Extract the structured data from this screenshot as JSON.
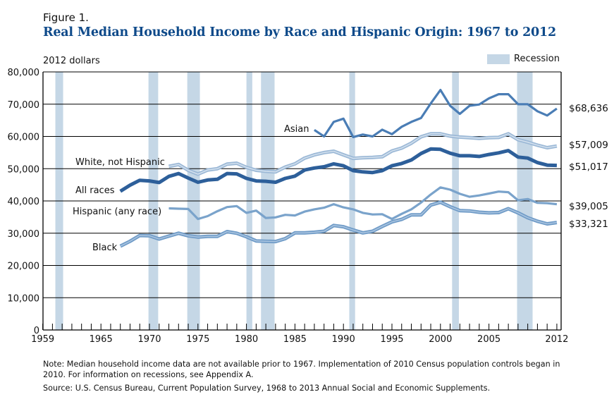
{
  "figure_label": "Figure 1.",
  "title": "Real Median Household Income by Race and Hispanic Origin: 1967 to 2012",
  "y_unit_label": "2012 dollars",
  "legend": {
    "recession_label": "Recession",
    "recession_color": "#c5d7e6"
  },
  "note": "Note: Median household income data are not available prior to 1967. Implementation of 2010 Census population controls began in 2010. For information on recessions, see Appendix A.",
  "source": "Source: U.S. Census Bureau, Current Population Survey, 1968 to 2013 Annual Social and Economic Supplements.",
  "chart_data": {
    "type": "line",
    "title": "Real Median Household Income by Race and Hispanic Origin: 1967 to 2012",
    "xlabel": "",
    "ylabel": "2012 dollars",
    "xlim": [
      1959,
      2012
    ],
    "ylim": [
      0,
      80000
    ],
    "grid": true,
    "y_ticks": [
      0,
      10000,
      20000,
      30000,
      40000,
      50000,
      60000,
      70000,
      80000
    ],
    "y_tick_labels": [
      "0",
      "10,000",
      "20,000",
      "30,000",
      "40,000",
      "50,000",
      "60,000",
      "70,000",
      "80,000"
    ],
    "x_ticks": [
      1959,
      1965,
      1970,
      1975,
      1980,
      1985,
      1990,
      1995,
      2000,
      2005,
      2012
    ],
    "x_tick_labels": [
      "1959",
      "1965",
      "1970",
      "1975",
      "1980",
      "1985",
      "1990",
      "1995",
      "2000",
      "2005",
      "2012"
    ],
    "legend_position": "top-right",
    "recessions": [
      [
        1960.3,
        1961.1
      ],
      [
        1969.9,
        1970.9
      ],
      [
        1973.9,
        1975.2
      ],
      [
        1980.0,
        1980.6
      ],
      [
        1981.5,
        1982.9
      ],
      [
        1990.6,
        1991.2
      ],
      [
        2001.2,
        2001.9
      ],
      [
        2007.9,
        2009.5
      ]
    ],
    "series": [
      {
        "name": "Asian",
        "label": "Asian",
        "end_label": "$68,636",
        "color": "#4a7db5",
        "style": "solid",
        "start_year": 1987,
        "values": [
          62000,
          60000,
          64500,
          65500,
          59800,
          60600,
          60000,
          62100,
          60700,
          63000,
          64500,
          65700,
          70200,
          74400,
          69500,
          67000,
          69500,
          69900,
          71800,
          73100,
          73100,
          70000,
          70000,
          67800,
          66500,
          68636
        ]
      },
      {
        "name": "White, not Hispanic",
        "label": "White, not Hispanic",
        "end_label": "$57,009",
        "color": "#9bb8d6",
        "style": "double",
        "start_year": 1972,
        "values": [
          50700,
          51300,
          49500,
          48300,
          49600,
          50000,
          51400,
          51700,
          50400,
          49500,
          49200,
          49000,
          50500,
          51500,
          53300,
          54300,
          55000,
          55400,
          54300,
          53200,
          53400,
          53500,
          53700,
          55500,
          56400,
          57900,
          59900,
          60800,
          60800,
          60100,
          59800,
          59600,
          59400,
          59600,
          59700,
          60800,
          59000,
          58200,
          57300,
          56500,
          57009
        ]
      },
      {
        "name": "All races",
        "label": "All races",
        "end_label": "$51,017",
        "color": "#2d5f9a",
        "style": "thick",
        "start_year": 1967,
        "values": [
          43000,
          44900,
          46400,
          46200,
          45700,
          47600,
          48500,
          47100,
          45800,
          46500,
          46700,
          48500,
          48400,
          47000,
          46200,
          46100,
          45800,
          47000,
          47700,
          49600,
          50200,
          50600,
          51500,
          50900,
          49400,
          49000,
          48800,
          49400,
          50900,
          51600,
          52700,
          54700,
          56100,
          56000,
          54800,
          54000,
          54000,
          53800,
          54400,
          54900,
          55600,
          53600,
          53300,
          51900,
          51100,
          51017
        ]
      },
      {
        "name": "Hispanic (any race)",
        "label": "Hispanic (any race)",
        "end_label": "$39,005",
        "color": "#7aa3cb",
        "style": "solid",
        "start_year": 1972,
        "values": [
          37700,
          37600,
          37500,
          34400,
          35300,
          36800,
          38100,
          38400,
          36300,
          37000,
          34700,
          34900,
          35700,
          35500,
          36700,
          37400,
          37900,
          39000,
          38000,
          37400,
          36300,
          35800,
          35900,
          34400,
          36000,
          37400,
          39500,
          42000,
          44200,
          43500,
          42200,
          41300,
          41700,
          42300,
          42900,
          42700,
          40200,
          40600,
          39400,
          39300,
          39005
        ]
      },
      {
        "name": "Black",
        "label": "Black",
        "end_label": "$33,321",
        "color": "#6f9bc7",
        "style": "double",
        "start_year": 1967,
        "values": [
          26000,
          27500,
          29300,
          29200,
          28200,
          29100,
          30000,
          29200,
          28800,
          29000,
          29000,
          30500,
          30000,
          28900,
          27600,
          27500,
          27400,
          28300,
          30100,
          30100,
          30300,
          30600,
          32400,
          32000,
          31000,
          30100,
          30600,
          32100,
          33500,
          34300,
          35700,
          35700,
          38700,
          39600,
          38200,
          37000,
          36900,
          36500,
          36300,
          36400,
          37600,
          36300,
          34800,
          33700,
          32900,
          33321
        ]
      }
    ]
  }
}
